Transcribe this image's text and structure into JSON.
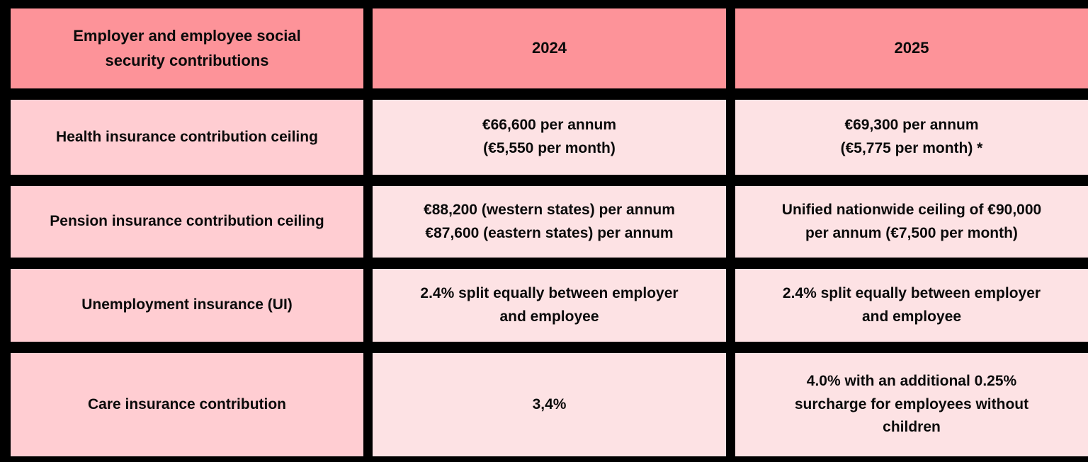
{
  "header": {
    "title": "Employer and employee social\nsecurity contributions",
    "col_2024": "2024",
    "col_2025": "2025"
  },
  "rows": [
    {
      "label": "Health insurance contribution ceiling",
      "v2024": "€66,600 per annum\n(€5,550 per month)",
      "v2025": "€69,300 per annum\n(€5,775 per month) *"
    },
    {
      "label": "Pension insurance contribution ceiling",
      "v2024": "€88,200 (western states) per annum\n€87,600 (eastern states) per annum",
      "v2025": "Unified nationwide ceiling of €90,000\nper annum (€7,500 per month)"
    },
    {
      "label": "Unemployment insurance (UI)",
      "v2024": "2.4% split equally between employer\nand employee",
      "v2025": "2.4% split equally between employer\nand employee"
    },
    {
      "label": "Care insurance contribution",
      "v2024": "3,4%",
      "v2025": "4.0% with an additional 0.25%\nsurcharge for employees without\nchildren"
    }
  ],
  "chart_data": {
    "type": "table",
    "title": "Employer and employee social security contributions",
    "columns": [
      "Employer and employee social security contributions",
      "2024",
      "2025"
    ],
    "rows": [
      [
        "Health insurance contribution ceiling",
        "€66,600 per annum (€5,550 per month)",
        "€69,300 per annum (€5,775 per month) *"
      ],
      [
        "Pension insurance contribution ceiling",
        "€88,200 (western states) per annum €87,600 (eastern states) per annum",
        "Unified nationwide ceiling of €90,000 per annum (€7,500 per month)"
      ],
      [
        "Unemployment insurance (UI)",
        "2.4% split equally between employer and employee",
        "2.4% split equally between employer and employee"
      ],
      [
        "Care insurance contribution",
        "3,4%",
        "4.0% with an additional 0.25% surcharge for employees without children"
      ]
    ]
  },
  "colors": {
    "background": "#000000",
    "header_cell": "#FD9399",
    "label_cell": "#FFCDD2",
    "data_cell": "#FDE2E4",
    "text": "#0A0A0A"
  }
}
